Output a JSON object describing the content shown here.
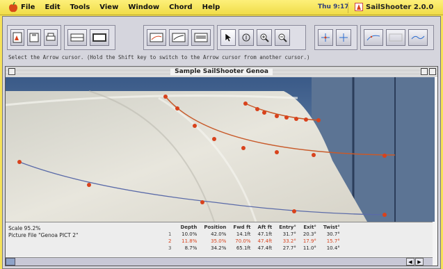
{
  "menubar": {
    "items": [
      "File",
      "Edit",
      "Tools",
      "View",
      "Window",
      "Chord",
      "Help"
    ],
    "clock": "Thu 9:17",
    "app_name": "SailShooter 2.0.0"
  },
  "toolbar": {
    "hint": "Select the Arrow cursor.   (Hold the Shift key to switch to the Arrow cursor from another cursor.)"
  },
  "document": {
    "title": "Sample SailShooter Genoa",
    "scale": "Scale 95.2%",
    "picture_file": "Picture File \"Genoa PICT 2\""
  },
  "table": {
    "headers": [
      "",
      "Depth",
      "Position",
      "Fwd ft",
      "Aft ft",
      "Entry°",
      "Exit°",
      "Twist°"
    ],
    "rows": [
      [
        "1",
        "10.0%",
        "42.0%",
        "14.1ft",
        "47.1ft",
        "31.7°",
        "20.3°",
        "30.7°"
      ],
      [
        "2",
        "11.8%",
        "35.0%",
        "70.0%",
        "47.4ft",
        "33.2°",
        "17.9°",
        "15.7°"
      ],
      [
        "3",
        "8.7%",
        "34.2%",
        "65.1ft",
        "47.4ft",
        "27.7°",
        "11.0°",
        "10.4°"
      ]
    ]
  },
  "colors": {
    "accent": "#d8421c",
    "menubar": "#f6e25a",
    "curve": "#c85a2a"
  }
}
